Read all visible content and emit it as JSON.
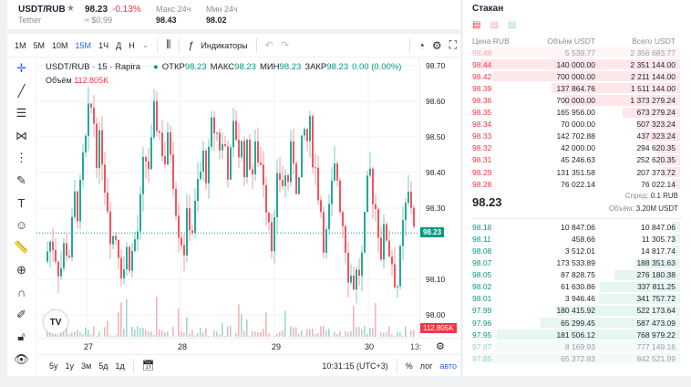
{
  "header": {
    "pair": "USDT/RUB",
    "name": "Tether",
    "price": "98.23",
    "change": "-0.13%",
    "usd": "≈ $0.99",
    "high_label": "Макс 24ч",
    "high": "98.43",
    "low_label": "Мин 24ч",
    "low": "98.02"
  },
  "toolbar": {
    "intervals": [
      "1M",
      "5M",
      "10M",
      "15M",
      "1Ч",
      "Д",
      "Н"
    ],
    "active": "15M",
    "indicators": "Индикаторы"
  },
  "legend": {
    "title": "USDT/RUB · 15 · Rapira",
    "open_l": "ОТКР",
    "open": "98.23",
    "high_l": "МАКС",
    "high": "98.23",
    "low_l": "МИН",
    "low": "98.23",
    "close_l": "ЗАКР",
    "close": "98.23",
    "chg": "0.00 (0.00%)",
    "vol_l": "Объём",
    "vol": "112.805K"
  },
  "price_axis": [
    "98.70",
    "98.60",
    "98.50",
    "98.40",
    "98.30",
    "98.10",
    "98.00"
  ],
  "current_price_tag": "98.23",
  "volume_tag": "112.805K",
  "time_axis": [
    "27",
    "28",
    "29",
    "30",
    "13:"
  ],
  "bottom": {
    "ranges": [
      "5y",
      "1y",
      "3м",
      "5д",
      "1д"
    ],
    "time": "10:31:15 (UTC+3)",
    "pct": "%",
    "log": "лог",
    "auto": "авто"
  },
  "orderbook": {
    "title": "Стакан",
    "headers": [
      "Цена RUB",
      "Объём USDT",
      "Всего USDT"
    ],
    "asks": [
      [
        "98.49",
        "5 539.77",
        "2 356 683.77"
      ],
      [
        "98.44",
        "140 000.00",
        "2 351 144.00"
      ],
      [
        "98.42",
        "700 000.00",
        "2 211 144.00"
      ],
      [
        "98.39",
        "137 864.76",
        "1 511 144.00"
      ],
      [
        "98.36",
        "700 000.00",
        "1 373 279.24"
      ],
      [
        "98.35",
        "165 956.00",
        "673 279.24"
      ],
      [
        "98.34",
        "70 000.00",
        "507 323.24"
      ],
      [
        "98.33",
        "142 702.88",
        "437 323.24"
      ],
      [
        "98.32",
        "42 000.00",
        "294 620.35"
      ],
      [
        "98.31",
        "45 246.63",
        "252 620.35"
      ],
      [
        "98.29",
        "131 351.58",
        "207 373.72"
      ],
      [
        "98.28",
        "76 022.14",
        "76 022.14"
      ]
    ],
    "mid": "98.23",
    "spread_label": "Спред:",
    "spread": "0.1 RUB",
    "volume_label": "Объём:",
    "volume": "3.20M USDT",
    "bids": [
      [
        "98.18",
        "10 847.06",
        "10 847.06"
      ],
      [
        "98.11",
        "458.66",
        "11 305.73"
      ],
      [
        "98.08",
        "3 512.01",
        "14 817.74"
      ],
      [
        "98.07",
        "173 533.89",
        "188 351.63"
      ],
      [
        "98.05",
        "87 828.75",
        "276 180.38"
      ],
      [
        "98.02",
        "61 630.86",
        "337 811.25"
      ],
      [
        "98.01",
        "3 946.46",
        "341 757.72"
      ],
      [
        "97.99",
        "180 415.92",
        "522 173.64"
      ],
      [
        "97.96",
        "65 299.45",
        "587 473.09"
      ],
      [
        "97.95",
        "181 506.12",
        "768 979.22"
      ],
      [
        "97.87",
        "8 169.93",
        "777 149.16"
      ],
      [
        "97.85",
        "65 372.83",
        "842 521.99"
      ]
    ]
  },
  "colors": {
    "up": "#089981",
    "down": "#f23645",
    "accent": "#2962ff"
  }
}
